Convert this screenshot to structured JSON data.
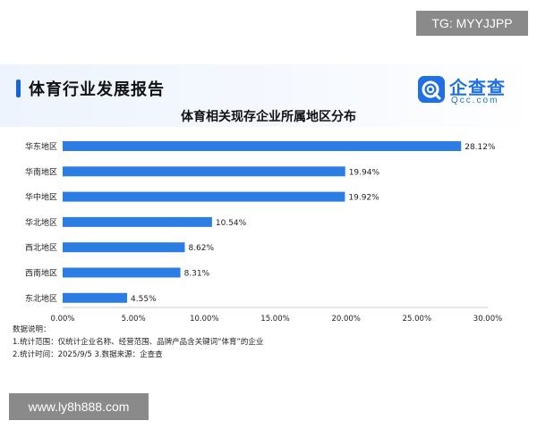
{
  "watermarks": {
    "top": "TG: MYYJJPP",
    "bottom": "www.ly8h888.com"
  },
  "header": {
    "report_title": "体育行业发展报告",
    "logo_text": "企查查",
    "logo_sub": "Qcc.com",
    "accent_color": "#1f6fe5"
  },
  "chart_data": {
    "type": "bar",
    "orientation": "horizontal",
    "title": "体育相关现存企业所属地区分布",
    "categories": [
      "华东地区",
      "华南地区",
      "华中地区",
      "华北地区",
      "西北地区",
      "西南地区",
      "东北地区"
    ],
    "values": [
      28.12,
      19.94,
      19.92,
      10.54,
      8.62,
      8.31,
      4.55
    ],
    "value_labels": [
      "28.12%",
      "19.94%",
      "19.92%",
      "10.54%",
      "8.62%",
      "8.31%",
      "4.55%"
    ],
    "xlim": [
      0,
      30
    ],
    "x_ticks": [
      0,
      5,
      10,
      15,
      20,
      25,
      30
    ],
    "x_tick_labels": [
      "0.00%",
      "5.00%",
      "10.00%",
      "15.00%",
      "20.00%",
      "25.00%",
      "30.00%"
    ],
    "bar_color": "#2b7de3",
    "grid": false,
    "legend": "none"
  },
  "notes": {
    "heading": "数据说明：",
    "line1": "1.统计范围：仅统计企业名称、经营范围、品牌产品含关键词“体育”的企业",
    "line2": "2.统计时间：2025/9/5  3.数据来源：企查查"
  }
}
